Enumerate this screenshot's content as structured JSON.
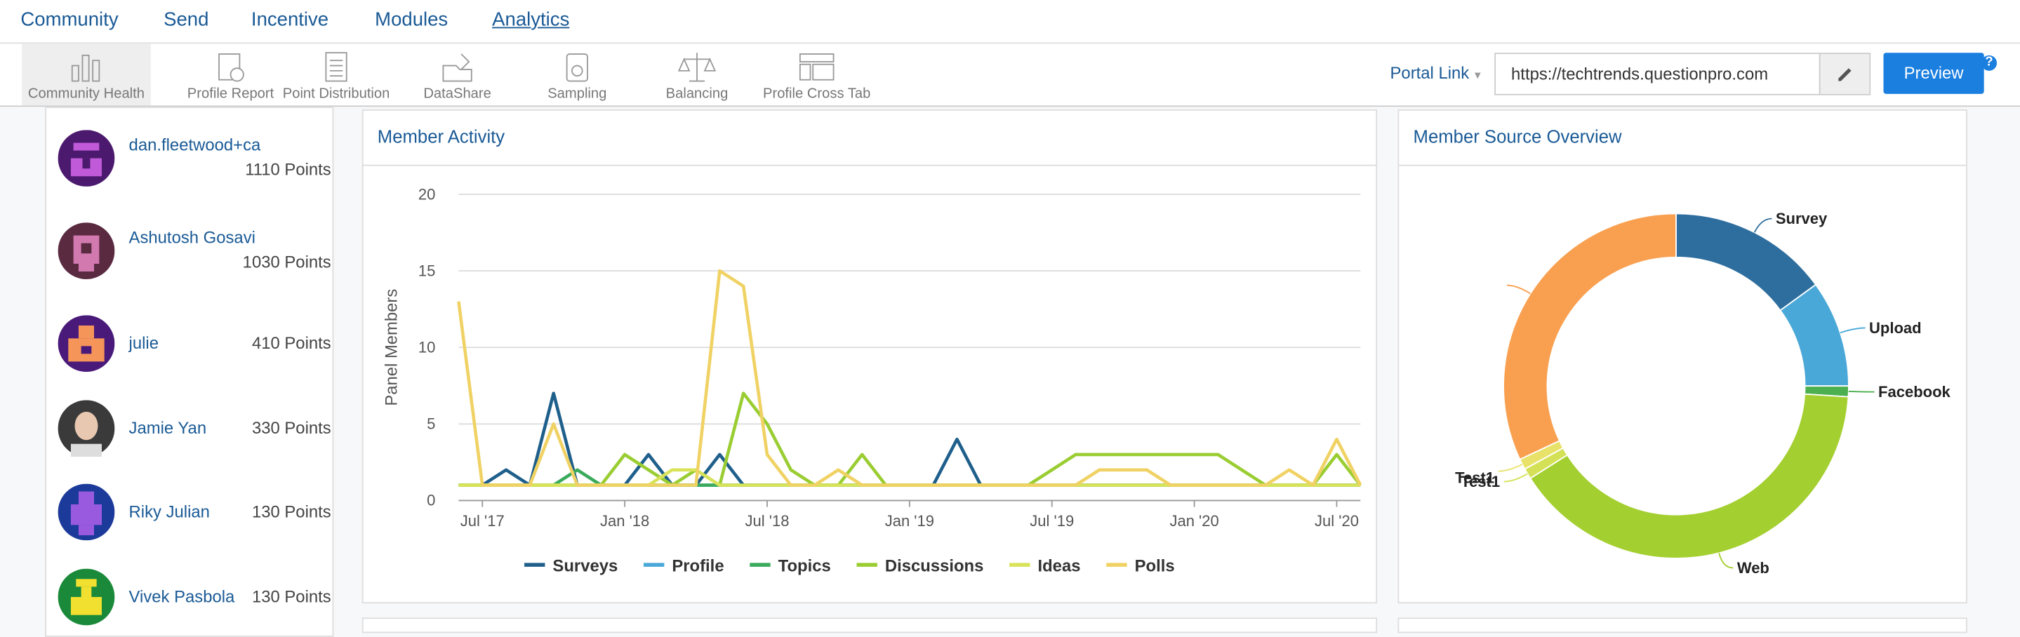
{
  "nav": {
    "items": [
      "Community",
      "Send",
      "Incentive",
      "Modules",
      "Analytics"
    ]
  },
  "toolbar": {
    "items": [
      "Community Health",
      "Profile Report",
      "Point Distribution",
      "DataShare",
      "Sampling",
      "Balancing",
      "Profile Cross Tab"
    ],
    "portal_link": "Portal Link",
    "url": "https://techtrends.questionpro.com",
    "preview": "Preview",
    "help": "?"
  },
  "leaderboard": [
    {
      "name": "dan.fleetwood+ca",
      "points": "1110 Points"
    },
    {
      "name": "Ashutosh Gosavi",
      "points": "1030 Points"
    },
    {
      "name": "julie",
      "points": "410 Points"
    },
    {
      "name": "Jamie Yan",
      "points": "330 Points"
    },
    {
      "name": "Riky Julian",
      "points": "130 Points"
    },
    {
      "name": "Vivek Pasbola",
      "points": "130 Points"
    }
  ],
  "chart_data": [
    {
      "type": "line",
      "title": "Member Activity",
      "y_label": "Panel Members",
      "x": [
        "2017-06",
        "2017-07",
        "2017-08",
        "2017-09",
        "2017-10",
        "2017-11",
        "2017-12",
        "2018-01",
        "2018-02",
        "2018-03",
        "2018-04",
        "2018-05",
        "2018-06",
        "2018-07",
        "2018-08",
        "2018-09",
        "2018-10",
        "2018-11",
        "2018-12",
        "2019-01",
        "2019-02",
        "2019-03",
        "2019-04",
        "2019-05",
        "2019-06",
        "2019-07",
        "2019-08",
        "2019-09",
        "2019-10",
        "2019-11",
        "2019-12",
        "2020-01",
        "2020-02",
        "2020-03",
        "2020-04",
        "2020-05",
        "2020-06",
        "2020-07",
        "2020-08"
      ],
      "xlim": [
        "2017-06",
        "2020-08"
      ],
      "xticks": [
        {
          "value": "2017-07",
          "label": "Jul '17"
        },
        {
          "value": "2018-01",
          "label": "Jan '18"
        },
        {
          "value": "2018-07",
          "label": "Jul '18"
        },
        {
          "value": "2019-01",
          "label": "Jan '19"
        },
        {
          "value": "2019-07",
          "label": "Jul '19"
        },
        {
          "value": "2020-01",
          "label": "Jan '20"
        },
        {
          "value": "2020-07",
          "label": "Jul '20"
        }
      ],
      "ylim": [
        0,
        20
      ],
      "yticks": [
        0,
        5,
        10,
        15,
        20
      ],
      "grid": true,
      "series": [
        {
          "name": "Surveys",
          "color": "#1f5f8b",
          "values": [
            1,
            1,
            2,
            1,
            7,
            1,
            1,
            1,
            3,
            1,
            1,
            3,
            1,
            1,
            1,
            1,
            1,
            1,
            1,
            1,
            1,
            4,
            1,
            1,
            1,
            1,
            1,
            1,
            1,
            1,
            1,
            1,
            1,
            1,
            1,
            1,
            1,
            1,
            1
          ]
        },
        {
          "name": "Profile",
          "color": "#4aa8d8",
          "values": [
            1,
            1,
            1,
            1,
            1,
            1,
            1,
            1,
            1,
            1,
            1,
            1,
            1,
            1,
            1,
            1,
            1,
            1,
            1,
            1,
            1,
            1,
            1,
            1,
            1,
            1,
            1,
            1,
            1,
            1,
            1,
            1,
            1,
            1,
            1,
            1,
            1,
            1,
            1
          ]
        },
        {
          "name": "Topics",
          "color": "#3aaa5c",
          "values": [
            1,
            1,
            1,
            1,
            1,
            2,
            1,
            1,
            1,
            1,
            1,
            1,
            1,
            1,
            1,
            1,
            1,
            1,
            1,
            1,
            1,
            1,
            1,
            1,
            1,
            1,
            1,
            1,
            1,
            1,
            1,
            1,
            1,
            1,
            1,
            1,
            1,
            1,
            1
          ]
        },
        {
          "name": "Discussions",
          "color": "#9acd32",
          "values": [
            1,
            1,
            1,
            1,
            1,
            1,
            1,
            3,
            2,
            1,
            2,
            1,
            7,
            5,
            2,
            1,
            1,
            3,
            1,
            1,
            1,
            1,
            1,
            1,
            1,
            2,
            3,
            3,
            3,
            3,
            3,
            3,
            3,
            2,
            1,
            1,
            1,
            3,
            1
          ]
        },
        {
          "name": "Ideas",
          "color": "#d9e35a",
          "values": [
            1,
            1,
            1,
            1,
            1,
            1,
            1,
            1,
            1,
            2,
            2,
            1,
            1,
            1,
            1,
            1,
            1,
            1,
            1,
            1,
            1,
            1,
            1,
            1,
            1,
            1,
            1,
            1,
            1,
            1,
            1,
            1,
            1,
            1,
            1,
            1,
            1,
            1,
            1
          ]
        },
        {
          "name": "Polls",
          "color": "#f0d264",
          "values": [
            13,
            1,
            1,
            1,
            5,
            1,
            1,
            1,
            1,
            1,
            1,
            15,
            14,
            3,
            1,
            1,
            2,
            1,
            1,
            1,
            1,
            1,
            1,
            1,
            1,
            1,
            1,
            2,
            2,
            2,
            1,
            1,
            1,
            1,
            1,
            2,
            1,
            4,
            1
          ]
        }
      ]
    },
    {
      "type": "pie",
      "title": "Member Source Overview",
      "categories": [
        "Survey",
        "Upload",
        "Facebook",
        "Web",
        "Test1",
        "Test1",
        null
      ],
      "values": [
        15,
        10,
        1,
        40,
        1,
        1,
        32
      ],
      "colors": [
        "#2e6e9e",
        "#4aa8d8",
        "#4caf50",
        "#a4cf30",
        "#d4e157",
        "#e8e26a",
        "#f9a050"
      ]
    }
  ]
}
